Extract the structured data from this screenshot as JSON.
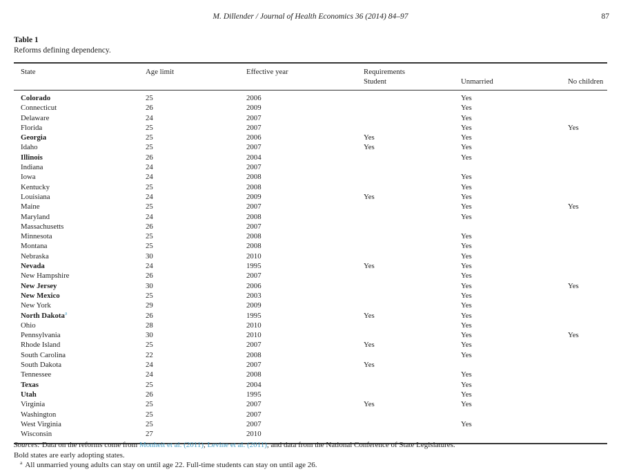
{
  "page_header": {
    "journal_line": "M. Dillender / Journal of Health Economics 36 (2014) 84–97",
    "page_number": "87"
  },
  "caption": {
    "label": "Table 1",
    "title": "Reforms defining dependency."
  },
  "table": {
    "header": {
      "state": "State",
      "age_limit": "Age limit",
      "effective_year": "Effective year",
      "requirements": "Requirements",
      "student": "Student",
      "unmarried": "Unmarried",
      "no_children": "No children"
    },
    "rows": [
      {
        "state": "Colorado",
        "bold": true,
        "footnote": "",
        "age_limit": "25",
        "effective_year": "2006",
        "student": "",
        "unmarried": "Yes",
        "no_children": ""
      },
      {
        "state": "Connecticut",
        "bold": false,
        "footnote": "",
        "age_limit": "26",
        "effective_year": "2009",
        "student": "",
        "unmarried": "Yes",
        "no_children": ""
      },
      {
        "state": "Delaware",
        "bold": false,
        "footnote": "",
        "age_limit": "24",
        "effective_year": "2007",
        "student": "",
        "unmarried": "Yes",
        "no_children": ""
      },
      {
        "state": "Florida",
        "bold": false,
        "footnote": "",
        "age_limit": "25",
        "effective_year": "2007",
        "student": "",
        "unmarried": "Yes",
        "no_children": "Yes"
      },
      {
        "state": "Georgia",
        "bold": true,
        "footnote": "",
        "age_limit": "25",
        "effective_year": "2006",
        "student": "Yes",
        "unmarried": "Yes",
        "no_children": ""
      },
      {
        "state": "Idaho",
        "bold": false,
        "footnote": "",
        "age_limit": "25",
        "effective_year": "2007",
        "student": "Yes",
        "unmarried": "Yes",
        "no_children": ""
      },
      {
        "state": "Illinois",
        "bold": true,
        "footnote": "",
        "age_limit": "26",
        "effective_year": "2004",
        "student": "",
        "unmarried": "Yes",
        "no_children": ""
      },
      {
        "state": "Indiana",
        "bold": false,
        "footnote": "",
        "age_limit": "24",
        "effective_year": "2007",
        "student": "",
        "unmarried": "",
        "no_children": ""
      },
      {
        "state": "Iowa",
        "bold": false,
        "footnote": "",
        "age_limit": "24",
        "effective_year": "2008",
        "student": "",
        "unmarried": "Yes",
        "no_children": ""
      },
      {
        "state": "Kentucky",
        "bold": false,
        "footnote": "",
        "age_limit": "25",
        "effective_year": "2008",
        "student": "",
        "unmarried": "Yes",
        "no_children": ""
      },
      {
        "state": "Louisiana",
        "bold": false,
        "footnote": "",
        "age_limit": "24",
        "effective_year": "2009",
        "student": "Yes",
        "unmarried": "Yes",
        "no_children": ""
      },
      {
        "state": "Maine",
        "bold": false,
        "footnote": "",
        "age_limit": "25",
        "effective_year": "2007",
        "student": "",
        "unmarried": "Yes",
        "no_children": "Yes"
      },
      {
        "state": "Maryland",
        "bold": false,
        "footnote": "",
        "age_limit": "24",
        "effective_year": "2008",
        "student": "",
        "unmarried": "Yes",
        "no_children": ""
      },
      {
        "state": "Massachusetts",
        "bold": false,
        "footnote": "",
        "age_limit": "26",
        "effective_year": "2007",
        "student": "",
        "unmarried": "",
        "no_children": ""
      },
      {
        "state": "Minnesota",
        "bold": false,
        "footnote": "",
        "age_limit": "25",
        "effective_year": "2008",
        "student": "",
        "unmarried": "Yes",
        "no_children": ""
      },
      {
        "state": "Montana",
        "bold": false,
        "footnote": "",
        "age_limit": "25",
        "effective_year": "2008",
        "student": "",
        "unmarried": "Yes",
        "no_children": ""
      },
      {
        "state": "Nebraska",
        "bold": false,
        "footnote": "",
        "age_limit": "30",
        "effective_year": "2010",
        "student": "",
        "unmarried": "Yes",
        "no_children": ""
      },
      {
        "state": "Nevada",
        "bold": true,
        "footnote": "",
        "age_limit": "24",
        "effective_year": "1995",
        "student": "Yes",
        "unmarried": "Yes",
        "no_children": ""
      },
      {
        "state": "New Hampshire",
        "bold": false,
        "footnote": "",
        "age_limit": "26",
        "effective_year": "2007",
        "student": "",
        "unmarried": "Yes",
        "no_children": ""
      },
      {
        "state": "New Jersey",
        "bold": true,
        "footnote": "",
        "age_limit": "30",
        "effective_year": "2006",
        "student": "",
        "unmarried": "Yes",
        "no_children": "Yes"
      },
      {
        "state": "New Mexico",
        "bold": true,
        "footnote": "",
        "age_limit": "25",
        "effective_year": "2003",
        "student": "",
        "unmarried": "Yes",
        "no_children": ""
      },
      {
        "state": "New York",
        "bold": false,
        "footnote": "",
        "age_limit": "29",
        "effective_year": "2009",
        "student": "",
        "unmarried": "Yes",
        "no_children": ""
      },
      {
        "state": "North Dakota",
        "bold": true,
        "footnote": "a",
        "age_limit": "26",
        "effective_year": "1995",
        "student": "Yes",
        "unmarried": "Yes",
        "no_children": ""
      },
      {
        "state": "Ohio",
        "bold": false,
        "footnote": "",
        "age_limit": "28",
        "effective_year": "2010",
        "student": "",
        "unmarried": "Yes",
        "no_children": ""
      },
      {
        "state": "Pennsylvania",
        "bold": false,
        "footnote": "",
        "age_limit": "30",
        "effective_year": "2010",
        "student": "",
        "unmarried": "Yes",
        "no_children": "Yes"
      },
      {
        "state": "Rhode Island",
        "bold": false,
        "footnote": "",
        "age_limit": "25",
        "effective_year": "2007",
        "student": "Yes",
        "unmarried": "Yes",
        "no_children": ""
      },
      {
        "state": "South Carolina",
        "bold": false,
        "footnote": "",
        "age_limit": "22",
        "effective_year": "2008",
        "student": "",
        "unmarried": "Yes",
        "no_children": ""
      },
      {
        "state": "South Dakota",
        "bold": false,
        "footnote": "",
        "age_limit": "24",
        "effective_year": "2007",
        "student": "Yes",
        "unmarried": "",
        "no_children": ""
      },
      {
        "state": "Tennessee",
        "bold": false,
        "footnote": "",
        "age_limit": "24",
        "effective_year": "2008",
        "student": "",
        "unmarried": "Yes",
        "no_children": ""
      },
      {
        "state": "Texas",
        "bold": true,
        "footnote": "",
        "age_limit": "25",
        "effective_year": "2004",
        "student": "",
        "unmarried": "Yes",
        "no_children": ""
      },
      {
        "state": "Utah",
        "bold": true,
        "footnote": "",
        "age_limit": "26",
        "effective_year": "1995",
        "student": "",
        "unmarried": "Yes",
        "no_children": ""
      },
      {
        "state": "Virginia",
        "bold": false,
        "footnote": "",
        "age_limit": "25",
        "effective_year": "2007",
        "student": "Yes",
        "unmarried": "Yes",
        "no_children": ""
      },
      {
        "state": "Washington",
        "bold": false,
        "footnote": "",
        "age_limit": "25",
        "effective_year": "2007",
        "student": "",
        "unmarried": "",
        "no_children": ""
      },
      {
        "state": "West Virginia",
        "bold": false,
        "footnote": "",
        "age_limit": "25",
        "effective_year": "2007",
        "student": "",
        "unmarried": "Yes",
        "no_children": ""
      },
      {
        "state": "Wisconsin",
        "bold": false,
        "footnote": "",
        "age_limit": "27",
        "effective_year": "2010",
        "student": "",
        "unmarried": "",
        "no_children": ""
      }
    ]
  },
  "footer": {
    "sources_prefix": "Sources:",
    "sources_text_1": " Data on the reforms come from ",
    "link_monheit": "Monheit et al. (2011)",
    "sources_text_2": ", ",
    "link_levine": "Levine et al. (2011)",
    "sources_text_3": ", and data from the National Conference of State Legislatures.",
    "bold_note": "Bold states are early adopting states.",
    "footnote_marker": "a",
    "footnote_text": "All unmarried young adults can stay on until age 22. Full-time students can stay on until age 26."
  },
  "colors": {
    "accent_link": "#3e9ac3",
    "text": "#1c1c1c",
    "rule": "#333333"
  }
}
